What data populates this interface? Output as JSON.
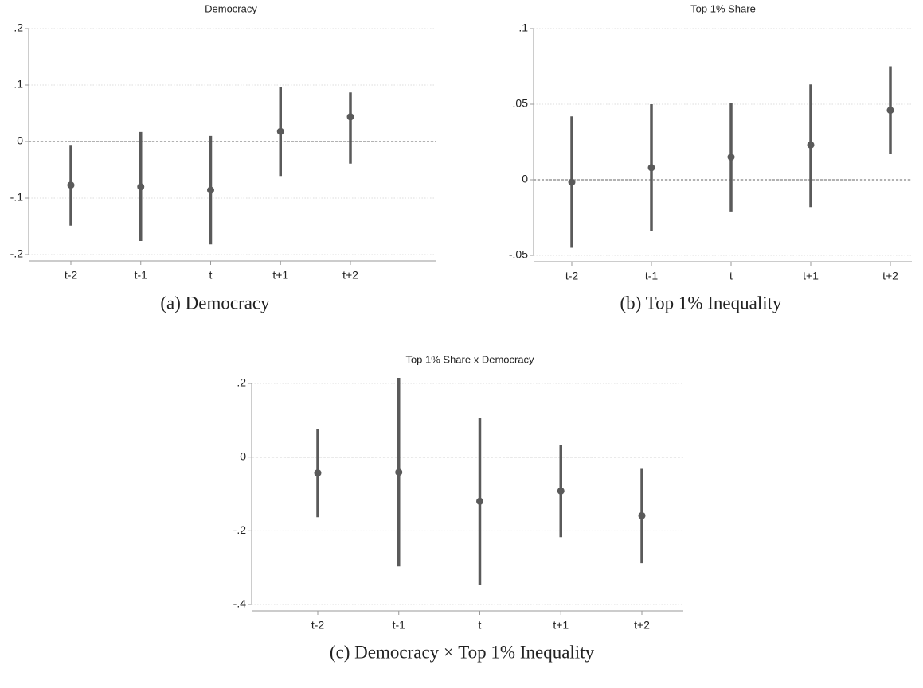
{
  "chart_data": [
    {
      "type": "errorbar",
      "title": "Democracy",
      "caption": "(a) Democracy",
      "categories": [
        "t-2",
        "t-1",
        "t",
        "t+1",
        "t+2"
      ],
      "values": [
        -0.077,
        -0.08,
        -0.086,
        0.018,
        0.044
      ],
      "ci_low": [
        -0.149,
        -0.176,
        -0.182,
        -0.061,
        -0.039
      ],
      "ci_high": [
        -0.006,
        0.017,
        0.01,
        0.097,
        0.087
      ],
      "color": "#5a5a5a",
      "ylim": [
        -0.2,
        0.2
      ],
      "yticks": [
        {
          "value": -0.2,
          "label": "-.2"
        },
        {
          "value": -0.1,
          "label": "-.1"
        },
        0,
        {
          "value": 0.1,
          "label": ".1"
        },
        {
          "value": 0.2,
          "label": ".2"
        }
      ],
      "hline": 0,
      "grid": true
    },
    {
      "type": "errorbar",
      "title": "Top 1% Share",
      "caption": "(b) Top 1% Inequality",
      "categories": [
        "t-2",
        "t-1",
        "t",
        "t+1",
        "t+2"
      ],
      "values": [
        -0.0016,
        0.008,
        0.015,
        0.023,
        0.046
      ],
      "ci_low": [
        -0.045,
        -0.034,
        -0.021,
        -0.018,
        0.017
      ],
      "ci_high": [
        0.042,
        0.05,
        0.051,
        0.063,
        0.075
      ],
      "color": "#5a5a5a",
      "ylim": [
        -0.05,
        0.1
      ],
      "yticks": [
        {
          "value": -0.05,
          "label": "-.05"
        },
        0,
        {
          "value": 0.05,
          "label": ".05"
        },
        {
          "value": 0.1,
          "label": ".1"
        }
      ],
      "hline": 0,
      "grid": true
    },
    {
      "type": "errorbar",
      "title": "Top 1% Share x Democracy",
      "caption": "(c) Democracy × Top 1% Inequality",
      "categories": [
        "t-2",
        "t-1",
        "t",
        "t+1",
        "t+2"
      ],
      "values": [
        -0.043,
        -0.041,
        -0.12,
        -0.092,
        -0.159
      ],
      "ci_low": [
        -0.163,
        -0.297,
        -0.348,
        -0.217,
        -0.288
      ],
      "ci_high": [
        0.077,
        0.215,
        0.105,
        0.032,
        -0.032
      ],
      "color": "#5a5a5a",
      "ylim": [
        -0.4,
        0.2
      ],
      "yticks": [
        {
          "value": -0.4,
          "label": "-.4"
        },
        {
          "value": -0.2,
          "label": "-.2"
        },
        0,
        {
          "value": 0.2,
          "label": ".2"
        }
      ],
      "hline": 0,
      "grid": true
    }
  ]
}
